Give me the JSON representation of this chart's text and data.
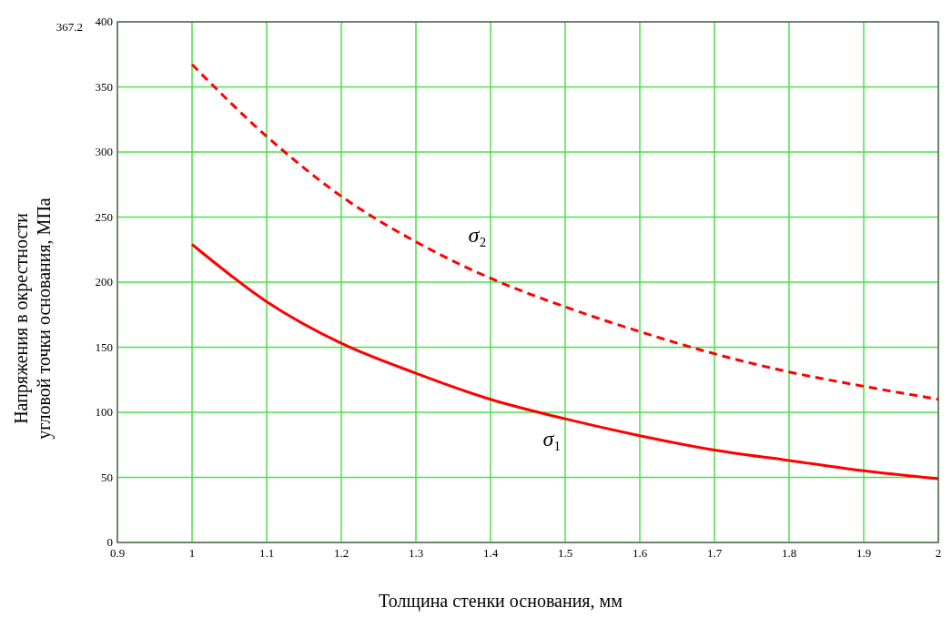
{
  "chart_data": {
    "type": "line",
    "xlabel": "Толщина стенки основания, мм",
    "ylabel": "Напряжения в окрестности\nугловой точки основания, МПа",
    "x": [
      1,
      1.1,
      1.2,
      1.3,
      1.4,
      1.5,
      1.6,
      1.7,
      1.8,
      1.9,
      2
    ],
    "series": [
      {
        "name": "σ₁",
        "color": "#ff0000",
        "line_style": "solid",
        "values": [
          229,
          185,
          153,
          130,
          110,
          95,
          82,
          71,
          63,
          55,
          49
        ]
      },
      {
        "name": "σ₂",
        "color": "#ff0000",
        "line_style": "dashed",
        "values": [
          367.2,
          312,
          266,
          231,
          203,
          181,
          162,
          145,
          131,
          120,
          110
        ]
      }
    ],
    "xlim": [
      0.9,
      2
    ],
    "xticks": [
      0.9,
      1,
      1.1,
      1.2,
      1.3,
      1.4,
      1.5,
      1.6,
      1.7,
      1.8,
      1.9,
      2
    ],
    "ylim": [
      0,
      400
    ],
    "yticks": [
      0,
      50,
      100,
      150,
      200,
      250,
      300,
      350,
      400
    ],
    "grid": true,
    "marker": "none",
    "annotations": [
      "367.2"
    ]
  }
}
